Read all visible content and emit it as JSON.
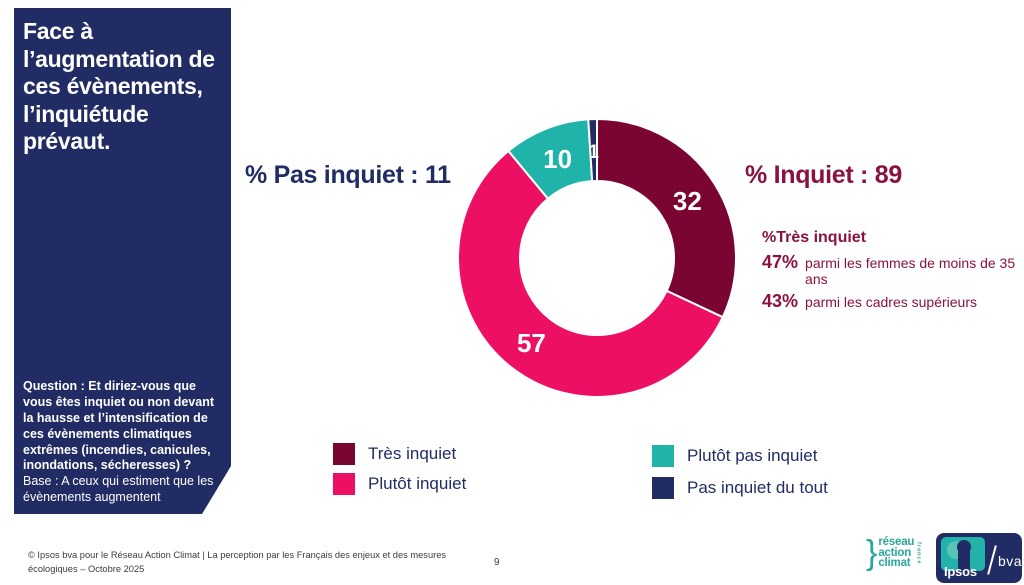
{
  "sidebar": {
    "title": "Face à l’augmentation de ces évènements, l’inquiétude prévaut.",
    "question_bold": "Question : Et diriez-vous que vous êtes inquiet ou non devant la hausse et l’intensification de ces évènements climatiques extrêmes (incendies, canicules, inondations, sécheresses) ?",
    "question_base": "Base : A ceux qui estiment que les évènements augmentent"
  },
  "headline": {
    "not_worried": "% Pas inquiet : 11",
    "worried": "% Inquiet : 89"
  },
  "annotation": {
    "title": "%Très inquiet",
    "lines": [
      {
        "pct": "47%",
        "text": "parmi les femmes de moins de 35 ans"
      },
      {
        "pct": "43%",
        "text": "parmi les cadres supérieurs"
      }
    ]
  },
  "chart_data": {
    "type": "pie",
    "subtype": "donut",
    "unit": "%",
    "start_angle_deg": 0,
    "direction": "clockwise",
    "totals": {
      "inquiet": 89,
      "pas_inquiet": 11
    },
    "segments": [
      {
        "key": "tres-inquiet",
        "label": "Très inquiet",
        "value": 32,
        "color": "#7a0533"
      },
      {
        "key": "plutot-inquiet",
        "label": "Plutôt inquiet",
        "value": 57,
        "color": "#ed0f63"
      },
      {
        "key": "plutot-pas-inquiet",
        "label": "Plutôt pas inquiet",
        "value": 10,
        "color": "#1fb3aa"
      },
      {
        "key": "pas-inquiet-du-tout",
        "label": "Pas inquiet du tout",
        "value": 1,
        "color": "#222c64"
      }
    ]
  },
  "footer": {
    "source": "© Ipsos bva pour le Réseau Action Climat | La perception par les Français des enjeux et des mesures écologiques – Octobre 2025",
    "page_number": "9"
  },
  "logos": {
    "rac": {
      "bracket": "}",
      "line1": "réseau",
      "line2": "action",
      "line3": "climat",
      "vertical": "france"
    },
    "ipsos": "Ipsos",
    "bva": "bva"
  },
  "colors": {
    "navy": "#222c64",
    "maroon_text": "#8a1140",
    "white": "#ffffff"
  }
}
